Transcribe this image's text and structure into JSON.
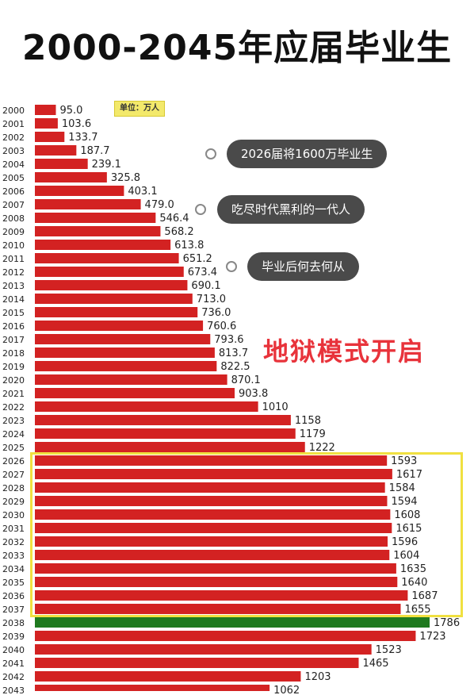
{
  "chart_data": {
    "type": "bar",
    "orientation": "horizontal",
    "title": "2000-2045年应届毕业生",
    "unit_label": "单位：万人",
    "categories": [
      "2000",
      "2001",
      "2002",
      "2003",
      "2004",
      "2005",
      "2006",
      "2007",
      "2008",
      "2009",
      "2010",
      "2011",
      "2012",
      "2013",
      "2014",
      "2015",
      "2016",
      "2017",
      "2018",
      "2019",
      "2020",
      "2021",
      "2022",
      "2023",
      "2024",
      "2025",
      "2026",
      "2027",
      "2028",
      "2029",
      "2030",
      "2031",
      "2032",
      "2033",
      "2034",
      "2035",
      "2036",
      "2037",
      "2038",
      "2039",
      "2040",
      "2041",
      "2042",
      "2043"
    ],
    "values": [
      95.0,
      103.6,
      133.7,
      187.7,
      239.1,
      325.8,
      403.1,
      479.0,
      546.4,
      568.2,
      613.8,
      651.2,
      673.4,
      690.1,
      713.0,
      736.0,
      760.6,
      793.6,
      813.7,
      822.5,
      870.1,
      903.8,
      1010,
      1158,
      1179,
      1222,
      1593,
      1617,
      1584,
      1594,
      1608,
      1615,
      1596,
      1604,
      1635,
      1640,
      1687,
      1655,
      1786,
      1723,
      1523,
      1465,
      1203,
      1062
    ],
    "value_labels": [
      "95.0",
      "103.6",
      "133.7",
      "187.7",
      "239.1",
      "325.8",
      "403.1",
      "479.0",
      "546.4",
      "568.2",
      "613.8",
      "651.2",
      "673.4",
      "690.1",
      "713.0",
      "736.0",
      "760.6",
      "793.6",
      "813.7",
      "822.5",
      "870.1",
      "903.8",
      "1010",
      "1158",
      "1179",
      "1222",
      "1593",
      "1617",
      "1584",
      "1594",
      "1608",
      "1615",
      "1596",
      "1604",
      "1635",
      "1640",
      "1687",
      "1655",
      "1786",
      "1723",
      "1523",
      "1465",
      "1203",
      "1062"
    ],
    "highlight_index": 38,
    "highlight_range": [
      "2026",
      "2037"
    ],
    "colors": {
      "bar": "#d32222",
      "bar_highlight": "#1f7a1f",
      "box": "#f0e040"
    }
  },
  "annotations": {
    "bubble_1": "2026届将1600万毕业生",
    "bubble_2": "吃尽时代黑利的一代人",
    "bubble_3": "毕业后何去何从",
    "slogan": "地狱模式开启"
  }
}
